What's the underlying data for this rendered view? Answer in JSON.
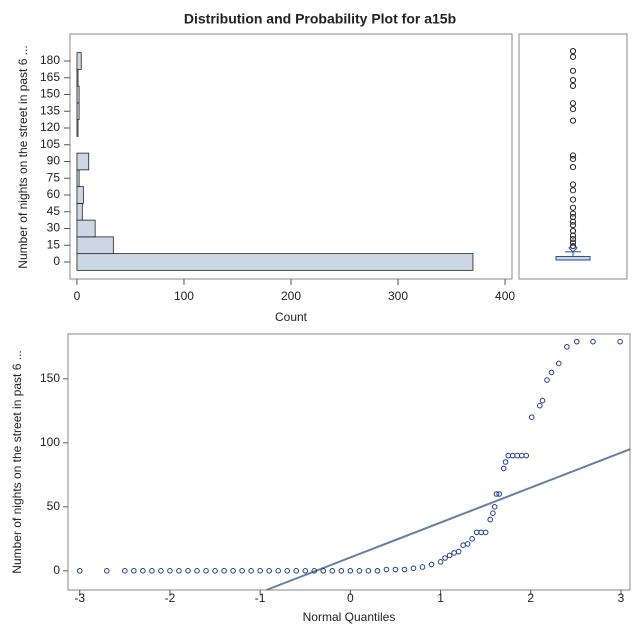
{
  "chart_data": [
    {
      "type": "hbar",
      "title": "Distribution and Probability Plot for a15b",
      "ylabel": "Number of nights on the street in past 6 ...",
      "xlabel": "Count",
      "categories": [
        "0",
        "15",
        "30",
        "45",
        "60",
        "75",
        "90",
        "105",
        "120",
        "135",
        "150",
        "165",
        "180"
      ],
      "values": [
        370,
        34,
        17,
        5,
        6,
        2,
        11,
        0,
        1,
        2,
        2,
        1,
        4
      ],
      "color": "#ccd6e4",
      "xlim": [
        -6.5,
        406.5
      ],
      "xticks": [
        0,
        100,
        200,
        300,
        400
      ]
    },
    {
      "type": "box",
      "min": 0,
      "q1": 0,
      "median": 0,
      "q3": 3,
      "max": 7,
      "mean": 10.4,
      "outliers": [
        180,
        175,
        163,
        155,
        150,
        135,
        130,
        120,
        90,
        87,
        80,
        65,
        60,
        52,
        45,
        40,
        37,
        33,
        30,
        25,
        21,
        18,
        15,
        12
      ],
      "ylim": [
        -16.4,
        194.7
      ],
      "color": "#ccd6e4",
      "line_color": "#2f4f8f"
    },
    {
      "type": "scatter",
      "xlabel": "Normal Quantiles",
      "ylabel": "Number of nights on the street in past 6 ...",
      "x": [
        -3.0,
        -2.7,
        -2.5,
        -2.4,
        -2.3,
        -2.2,
        -2.1,
        -2.0,
        -1.9,
        -1.8,
        -1.7,
        -1.6,
        -1.5,
        -1.4,
        -1.3,
        -1.2,
        -1.1,
        -1.0,
        -0.9,
        -0.8,
        -0.7,
        -0.6,
        -0.5,
        -0.4,
        -0.3,
        -0.2,
        -0.1,
        0.0,
        0.1,
        0.2,
        0.3,
        0.4,
        0.5,
        0.6,
        0.7,
        0.8,
        0.9,
        1.0,
        1.05,
        1.1,
        1.15,
        1.2,
        1.25,
        1.3,
        1.35,
        1.4,
        1.45,
        1.5,
        1.55,
        1.58,
        1.6,
        1.62,
        1.65,
        1.7,
        1.72,
        1.75,
        1.8,
        1.85,
        1.9,
        1.95,
        2.01,
        2.1,
        2.13,
        2.18,
        2.23,
        2.31,
        2.4,
        2.51,
        2.69,
        2.99
      ],
      "values": [
        0,
        0,
        0,
        0,
        0,
        0,
        0,
        0,
        0,
        0,
        0,
        0,
        0,
        0,
        0,
        0,
        0,
        0,
        0,
        0,
        0,
        0,
        0,
        0,
        0,
        0,
        0,
        0,
        0,
        0,
        0,
        1,
        1,
        1,
        2,
        3,
        5,
        7,
        10,
        12,
        14,
        15,
        20,
        21,
        25,
        30,
        30,
        30,
        40,
        45,
        50,
        60,
        60,
        80,
        85,
        90,
        90,
        90,
        90,
        90,
        120,
        129,
        133,
        149,
        155,
        162,
        175,
        179,
        179,
        179
      ],
      "xlim": [
        -3.13,
        3.1
      ],
      "ylim": [
        -15,
        185
      ],
      "xticks": [
        -3,
        -2,
        -1,
        0,
        1,
        2,
        3
      ],
      "yticks": [
        0,
        50,
        100,
        150
      ],
      "reference_line": {
        "intercept": 10.4,
        "slope": 27.3
      },
      "color": "#1f3f8f",
      "line_color": "#6680a3"
    }
  ]
}
